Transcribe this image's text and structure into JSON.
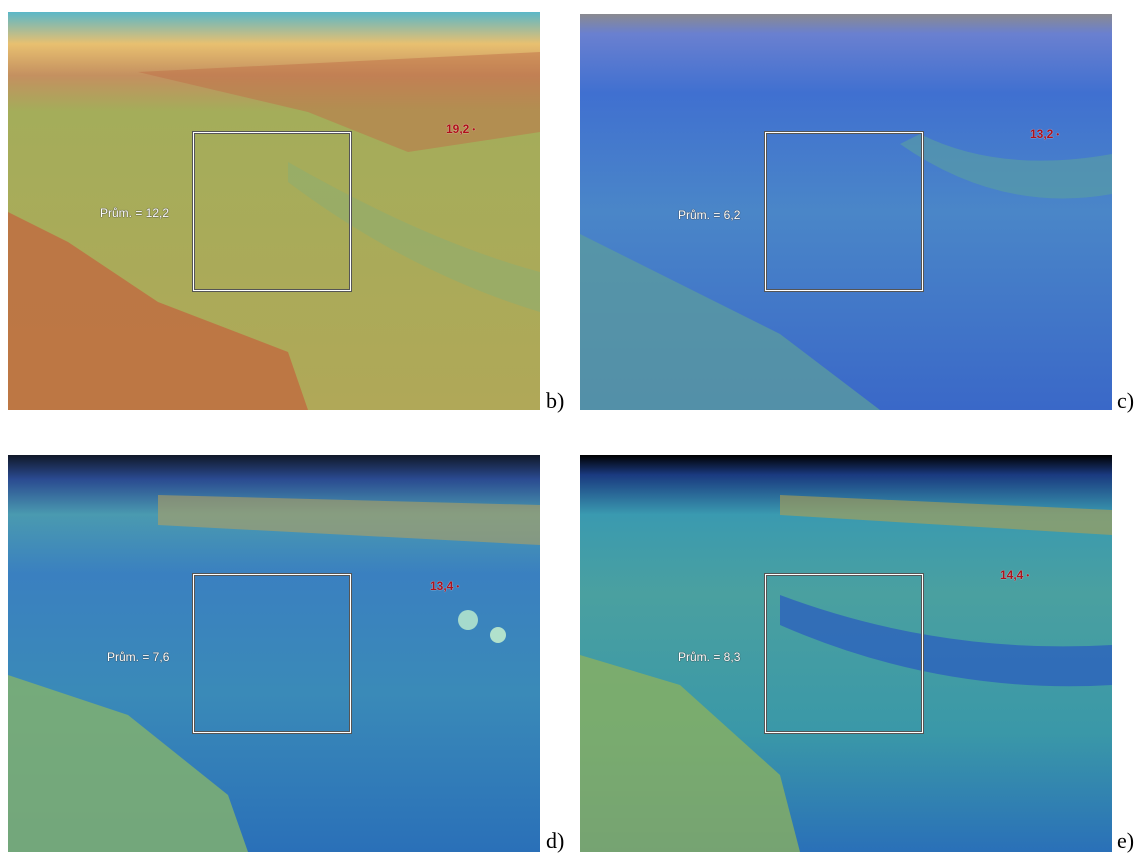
{
  "panels": [
    {
      "letter": "b)",
      "average": "Prům. = 12,2",
      "maximum": "19,2"
    },
    {
      "letter": "c)",
      "average": "Prům. = 6,2",
      "maximum": "13,2"
    },
    {
      "letter": "d)",
      "average": "Prům. = 7,6",
      "maximum": "13,4"
    },
    {
      "letter": "e)",
      "average": "Prům. = 8,3",
      "maximum": "14,4"
    }
  ]
}
